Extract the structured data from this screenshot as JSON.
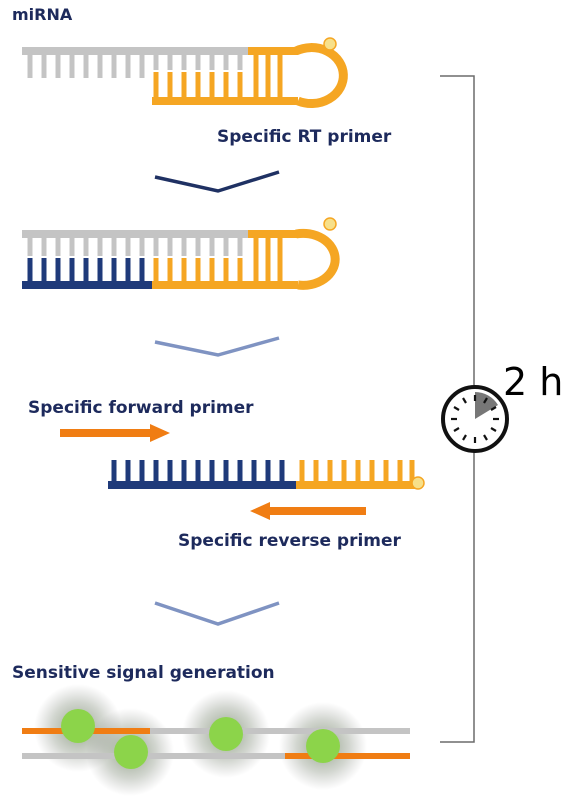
{
  "labels": {
    "mirna": "miRNA",
    "rt_primer": "Specific RT primer",
    "forward_primer": "Specific forward primer",
    "reverse_primer": "Specific reverse primer",
    "signal": "Sensitive signal generation"
  },
  "timer": {
    "duration": "2 h"
  },
  "colors": {
    "navy": "#1f3a7a",
    "navy_text": "#1d2a5c",
    "gray_strand": "#c4c4c4",
    "gold": "#f5a623",
    "orange_arrow": "#f07d13",
    "chevron_dark": "#1f3163",
    "chevron_light": "#7f93c2",
    "green": "#8cd44a"
  }
}
